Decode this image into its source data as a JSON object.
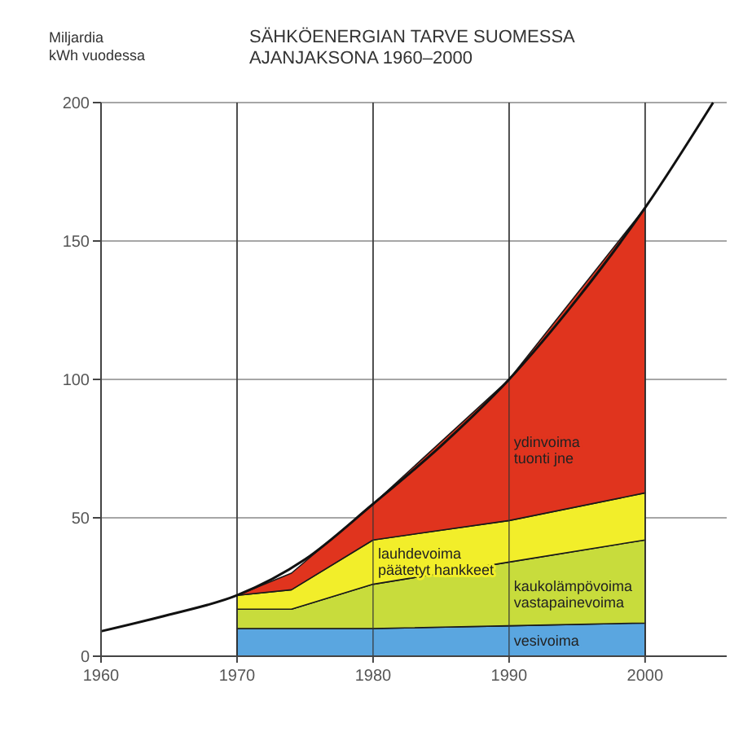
{
  "chart_data": {
    "type": "area",
    "stacked": true,
    "title": "SÄHKÖENERGIAN TARVE SUOMESSA\nAJANJAKSONA 1960–2000",
    "ylabel": "Miljardia\nkWh vuodessa",
    "x": [
      1970,
      1974,
      1980,
      1990,
      2000
    ],
    "series": [
      {
        "name": "vesivoima",
        "color": "#5aa6e0",
        "values": [
          10,
          10,
          10,
          11,
          12
        ]
      },
      {
        "name": "kaukolämpövoima\nvastapainevoima",
        "color": "#c8dc3c",
        "values": [
          7,
          7,
          16,
          23,
          30
        ]
      },
      {
        "name": "lauhdevoima\npäätetyt hankkeet",
        "color": "#f2ee2a",
        "values": [
          5,
          7,
          16,
          15,
          17
        ]
      },
      {
        "name": "ydinvoima\ntuonti jne",
        "color": "#e0341e",
        "values": [
          0,
          6,
          13,
          51,
          103
        ]
      },
      {
        "type": "line",
        "color": "#111111",
        "x": [
          1960,
          1965,
          1970,
          1975,
          1980,
          1985,
          1990,
          1995,
          2000,
          2005
        ],
        "values": [
          9,
          15,
          22,
          35,
          55,
          76,
          100,
          129,
          162,
          200
        ]
      }
    ],
    "xlim": [
      1960,
      2006
    ],
    "xticks": [
      1960,
      1970,
      1980,
      1990,
      2000
    ],
    "ylim": [
      0,
      200
    ],
    "yticks": [
      0,
      50,
      100,
      150,
      200
    ],
    "grid": true
  }
}
